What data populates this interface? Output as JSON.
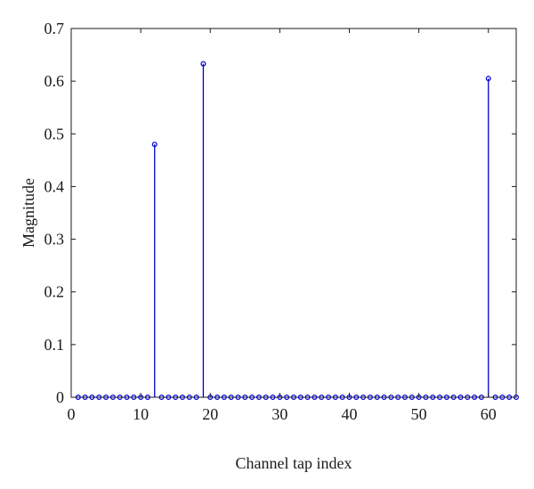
{
  "chart_data": {
    "type": "stem",
    "title": "",
    "xlabel": "Channel tap index",
    "ylabel": "Magnitude",
    "xlim": [
      0,
      64
    ],
    "ylim": [
      0,
      0.7
    ],
    "xticks": [
      0,
      10,
      20,
      30,
      40,
      50,
      60
    ],
    "yticks": [
      0,
      0.1,
      0.2,
      0.3,
      0.4,
      0.5,
      0.6,
      0.7
    ],
    "xtick_labels": [
      "0",
      "10",
      "20",
      "30",
      "40",
      "50",
      "60"
    ],
    "ytick_labels": [
      "0",
      "0.1",
      "0.2",
      "0.3",
      "0.4",
      "0.5",
      "0.6",
      "0.7"
    ],
    "grid": false,
    "color": "#0000cc",
    "series": [
      {
        "x": [
          1,
          2,
          3,
          4,
          5,
          6,
          7,
          8,
          9,
          10,
          11,
          12,
          13,
          14,
          15,
          16,
          17,
          18,
          19,
          20,
          21,
          22,
          23,
          24,
          25,
          26,
          27,
          28,
          29,
          30,
          31,
          32,
          33,
          34,
          35,
          36,
          37,
          38,
          39,
          40,
          41,
          42,
          43,
          44,
          45,
          46,
          47,
          48,
          49,
          50,
          51,
          52,
          53,
          54,
          55,
          56,
          57,
          58,
          59,
          60,
          61,
          62,
          63,
          64
        ],
        "values": [
          0,
          0,
          0,
          0,
          0,
          0,
          0,
          0,
          0,
          0,
          0,
          0.48,
          0,
          0,
          0,
          0,
          0,
          0,
          0.633,
          0,
          0,
          0,
          0,
          0,
          0,
          0,
          0,
          0,
          0,
          0,
          0,
          0,
          0,
          0,
          0,
          0,
          0,
          0,
          0,
          0,
          0,
          0,
          0,
          0,
          0,
          0,
          0,
          0,
          0,
          0,
          0,
          0,
          0,
          0,
          0,
          0,
          0,
          0,
          0,
          0.605,
          0,
          0,
          0,
          0
        ]
      }
    ]
  }
}
